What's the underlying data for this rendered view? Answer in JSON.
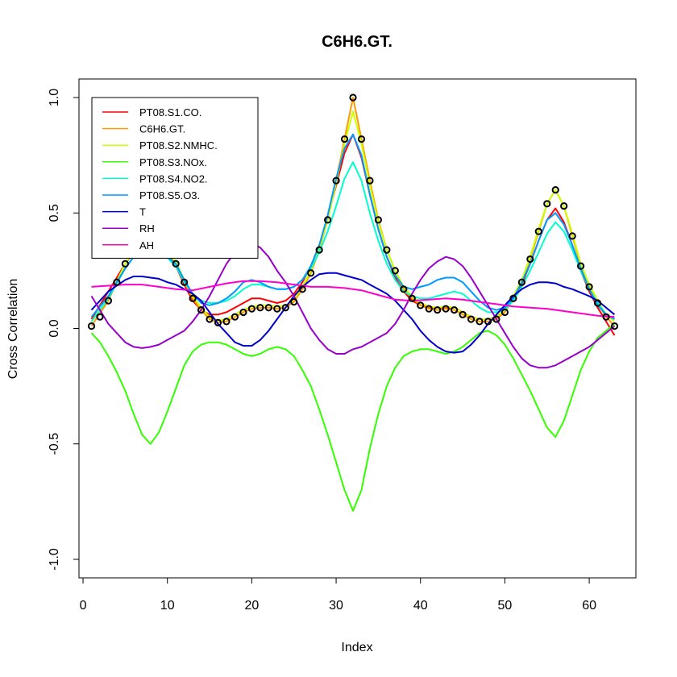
{
  "chart_data": {
    "type": "line",
    "title": "C6H6.GT.",
    "xlabel": "Index",
    "ylabel": "Cross Correlation",
    "xlim": [
      0,
      65
    ],
    "ylim": [
      -1.0,
      1.0
    ],
    "x_ticks": [
      0,
      10,
      20,
      30,
      40,
      50,
      60
    ],
    "x_tick_labels": [
      "0",
      "10",
      "20",
      "30",
      "40",
      "50",
      "60"
    ],
    "y_ticks": [
      -1.0,
      -0.5,
      0.0,
      0.5,
      1.0
    ],
    "y_tick_labels": [
      "-1.0",
      "-0.5",
      "0.0",
      "0.5",
      "1.0"
    ],
    "legend_position": "top-left",
    "points": {
      "name": "C6H6.GT.",
      "marker": "open-circle",
      "color": "#000000",
      "x": [
        1,
        2,
        3,
        4,
        5,
        6,
        7,
        8,
        9,
        10,
        11,
        12,
        13,
        14,
        15,
        16,
        17,
        18,
        19,
        20,
        21,
        22,
        23,
        24,
        25,
        26,
        27,
        28,
        29,
        30,
        31,
        32,
        33,
        34,
        35,
        36,
        37,
        38,
        39,
        40,
        41,
        42,
        43,
        44,
        45,
        46,
        47,
        48,
        49,
        50,
        51,
        52,
        53,
        54,
        55,
        56,
        57,
        58,
        59,
        60,
        61,
        62,
        63
      ],
      "y": [
        0.01,
        0.05,
        0.12,
        0.2,
        0.28,
        0.34,
        0.37,
        0.38,
        0.37,
        0.34,
        0.28,
        0.2,
        0.13,
        0.08,
        0.04,
        0.025,
        0.03,
        0.05,
        0.07,
        0.085,
        0.09,
        0.09,
        0.085,
        0.09,
        0.115,
        0.17,
        0.24,
        0.34,
        0.47,
        0.64,
        0.82,
        1.0,
        0.82,
        0.64,
        0.47,
        0.34,
        0.25,
        0.17,
        0.13,
        0.1,
        0.085,
        0.08,
        0.085,
        0.08,
        0.06,
        0.04,
        0.03,
        0.03,
        0.04,
        0.07,
        0.13,
        0.2,
        0.3,
        0.42,
        0.54,
        0.6,
        0.53,
        0.4,
        0.27,
        0.18,
        0.11,
        0.05,
        0.01
      ]
    },
    "series": [
      {
        "name": "PT08.S1.CO.",
        "color": "#FF0000",
        "x": [
          1,
          3,
          5,
          6,
          7,
          8,
          9,
          11,
          12,
          13,
          14,
          15,
          16,
          17,
          18,
          19,
          20,
          21,
          22,
          23,
          24,
          25,
          26,
          27,
          28,
          29,
          30,
          31,
          32,
          33,
          34,
          35,
          36,
          37,
          38,
          39,
          40,
          41,
          42,
          43,
          44,
          45,
          46,
          47,
          48,
          49,
          50,
          51,
          52,
          53,
          54,
          55,
          56,
          57,
          58,
          59,
          60,
          61,
          62,
          63
        ],
        "y": [
          0.04,
          0.16,
          0.28,
          0.33,
          0.35,
          0.36,
          0.35,
          0.27,
          0.19,
          0.12,
          0.08,
          0.06,
          0.06,
          0.07,
          0.09,
          0.11,
          0.13,
          0.13,
          0.12,
          0.11,
          0.12,
          0.15,
          0.2,
          0.27,
          0.36,
          0.48,
          0.62,
          0.76,
          0.84,
          0.74,
          0.58,
          0.43,
          0.31,
          0.22,
          0.16,
          0.12,
          0.1,
          0.09,
          0.09,
          0.09,
          0.09,
          0.07,
          0.05,
          0.04,
          0.04,
          0.05,
          0.08,
          0.13,
          0.19,
          0.28,
          0.38,
          0.47,
          0.52,
          0.46,
          0.36,
          0.25,
          0.16,
          0.09,
          0.03,
          -0.03
        ]
      },
      {
        "name": "C6H6.GT.",
        "color": "#FF9900",
        "x": [
          1,
          3,
          5,
          6,
          7,
          8,
          9,
          11,
          12,
          13,
          14,
          15,
          16,
          17,
          18,
          19,
          20,
          21,
          22,
          23,
          24,
          25,
          26,
          27,
          28,
          29,
          30,
          31,
          32,
          33,
          34,
          35,
          36,
          37,
          38,
          39,
          40,
          41,
          42,
          43,
          44,
          45,
          46,
          47,
          48,
          49,
          50,
          51,
          52,
          53,
          54,
          55,
          56,
          57,
          58,
          59,
          60,
          61,
          62,
          63
        ],
        "y": [
          0.01,
          0.12,
          0.28,
          0.34,
          0.37,
          0.38,
          0.37,
          0.28,
          0.2,
          0.13,
          0.08,
          0.04,
          0.025,
          0.03,
          0.05,
          0.07,
          0.085,
          0.09,
          0.09,
          0.085,
          0.09,
          0.115,
          0.17,
          0.24,
          0.34,
          0.47,
          0.64,
          0.82,
          1.0,
          0.82,
          0.64,
          0.47,
          0.34,
          0.25,
          0.17,
          0.13,
          0.1,
          0.085,
          0.08,
          0.085,
          0.08,
          0.06,
          0.04,
          0.03,
          0.03,
          0.04,
          0.07,
          0.13,
          0.2,
          0.3,
          0.42,
          0.54,
          0.6,
          0.53,
          0.4,
          0.27,
          0.18,
          0.11,
          0.05,
          0.01
        ]
      },
      {
        "name": "PT08.S2.NMHC.",
        "color": "#CCFF00",
        "x": [
          1,
          3,
          5,
          6,
          7,
          8,
          9,
          11,
          12,
          13,
          14,
          15,
          16,
          17,
          18,
          19,
          20,
          21,
          22,
          23,
          24,
          25,
          26,
          27,
          28,
          29,
          30,
          31,
          32,
          33,
          34,
          35,
          36,
          37,
          38,
          39,
          40,
          41,
          42,
          43,
          44,
          45,
          46,
          47,
          48,
          49,
          50,
          51,
          52,
          53,
          54,
          55,
          56,
          57,
          58,
          59,
          60,
          61,
          62,
          63
        ],
        "y": [
          0.03,
          0.13,
          0.28,
          0.34,
          0.37,
          0.38,
          0.37,
          0.29,
          0.21,
          0.14,
          0.09,
          0.05,
          0.035,
          0.04,
          0.06,
          0.08,
          0.095,
          0.1,
          0.1,
          0.095,
          0.1,
          0.125,
          0.18,
          0.25,
          0.35,
          0.47,
          0.63,
          0.8,
          0.94,
          0.8,
          0.62,
          0.46,
          0.34,
          0.25,
          0.18,
          0.14,
          0.11,
          0.095,
          0.09,
          0.095,
          0.09,
          0.07,
          0.05,
          0.04,
          0.04,
          0.05,
          0.08,
          0.14,
          0.21,
          0.31,
          0.43,
          0.54,
          0.6,
          0.53,
          0.41,
          0.28,
          0.19,
          0.12,
          0.06,
          0.03
        ]
      },
      {
        "name": "PT08.S3.NOx.",
        "color": "#33FF00",
        "x": [
          1,
          2,
          3,
          4,
          5,
          6,
          7,
          8,
          9,
          10,
          11,
          12,
          13,
          14,
          15,
          16,
          17,
          18,
          19,
          20,
          21,
          22,
          23,
          24,
          25,
          26,
          27,
          28,
          29,
          30,
          31,
          32,
          33,
          34,
          35,
          36,
          37,
          38,
          39,
          40,
          41,
          42,
          43,
          44,
          45,
          46,
          47,
          48,
          49,
          50,
          51,
          52,
          53,
          54,
          55,
          56,
          57,
          58,
          59,
          60,
          61,
          62,
          63
        ],
        "y": [
          -0.02,
          -0.06,
          -0.12,
          -0.19,
          -0.27,
          -0.37,
          -0.46,
          -0.5,
          -0.45,
          -0.36,
          -0.26,
          -0.16,
          -0.1,
          -0.07,
          -0.06,
          -0.06,
          -0.07,
          -0.09,
          -0.11,
          -0.12,
          -0.11,
          -0.09,
          -0.08,
          -0.09,
          -0.12,
          -0.18,
          -0.25,
          -0.35,
          -0.46,
          -0.58,
          -0.7,
          -0.79,
          -0.7,
          -0.52,
          -0.37,
          -0.25,
          -0.17,
          -0.12,
          -0.1,
          -0.09,
          -0.09,
          -0.1,
          -0.11,
          -0.1,
          -0.08,
          -0.05,
          -0.02,
          -0.01,
          -0.03,
          -0.07,
          -0.13,
          -0.2,
          -0.27,
          -0.35,
          -0.43,
          -0.47,
          -0.4,
          -0.29,
          -0.18,
          -0.1,
          -0.04,
          -0.01,
          0.02
        ]
      },
      {
        "name": "PT08.S4.NO2.",
        "color": "#00FFCC",
        "x": [
          1,
          3,
          5,
          6,
          7,
          8,
          9,
          11,
          12,
          13,
          14,
          15,
          16,
          17,
          18,
          19,
          20,
          21,
          22,
          23,
          24,
          25,
          26,
          27,
          28,
          29,
          30,
          31,
          32,
          33,
          34,
          35,
          36,
          37,
          38,
          39,
          40,
          41,
          42,
          43,
          44,
          45,
          46,
          47,
          48,
          49,
          50,
          51,
          52,
          53,
          54,
          55,
          56,
          57,
          58,
          59,
          60,
          61,
          62,
          63
        ],
        "y": [
          0.03,
          0.13,
          0.26,
          0.31,
          0.34,
          0.35,
          0.34,
          0.27,
          0.2,
          0.15,
          0.12,
          0.11,
          0.11,
          0.12,
          0.14,
          0.17,
          0.19,
          0.19,
          0.18,
          0.17,
          0.17,
          0.18,
          0.21,
          0.26,
          0.33,
          0.42,
          0.53,
          0.65,
          0.72,
          0.64,
          0.5,
          0.38,
          0.28,
          0.21,
          0.16,
          0.14,
          0.13,
          0.13,
          0.14,
          0.15,
          0.16,
          0.15,
          0.12,
          0.09,
          0.07,
          0.07,
          0.08,
          0.12,
          0.18,
          0.25,
          0.33,
          0.41,
          0.46,
          0.42,
          0.34,
          0.25,
          0.17,
          0.11,
          0.06,
          0.04
        ]
      },
      {
        "name": "PT08.S5.O3.",
        "color": "#0099FF",
        "x": [
          1,
          3,
          5,
          6,
          7,
          8,
          9,
          11,
          12,
          13,
          14,
          15,
          16,
          17,
          18,
          19,
          20,
          21,
          22,
          23,
          24,
          25,
          26,
          27,
          28,
          29,
          30,
          31,
          32,
          33,
          34,
          35,
          36,
          37,
          38,
          39,
          40,
          41,
          42,
          43,
          44,
          45,
          46,
          47,
          48,
          49,
          50,
          51,
          52,
          53,
          54,
          55,
          56,
          57,
          58,
          59,
          60,
          61,
          62,
          63
        ],
        "y": [
          0.05,
          0.14,
          0.26,
          0.31,
          0.34,
          0.35,
          0.34,
          0.28,
          0.21,
          0.15,
          0.11,
          0.1,
          0.11,
          0.13,
          0.16,
          0.2,
          0.21,
          0.2,
          0.18,
          0.17,
          0.17,
          0.18,
          0.21,
          0.27,
          0.36,
          0.49,
          0.65,
          0.78,
          0.84,
          0.75,
          0.58,
          0.43,
          0.31,
          0.23,
          0.18,
          0.17,
          0.18,
          0.19,
          0.21,
          0.22,
          0.22,
          0.2,
          0.16,
          0.12,
          0.09,
          0.08,
          0.09,
          0.13,
          0.2,
          0.28,
          0.38,
          0.47,
          0.5,
          0.45,
          0.36,
          0.26,
          0.17,
          0.1,
          0.06,
          0.04
        ]
      },
      {
        "name": "T",
        "color": "#0000CC",
        "x": [
          1,
          3,
          5,
          6,
          7,
          8,
          9,
          10,
          11,
          12,
          13,
          14,
          15,
          16,
          17,
          18,
          19,
          20,
          21,
          22,
          23,
          24,
          25,
          26,
          27,
          28,
          29,
          30,
          31,
          32,
          33,
          34,
          35,
          36,
          37,
          38,
          39,
          40,
          41,
          42,
          43,
          44,
          45,
          46,
          47,
          48,
          49,
          50,
          51,
          52,
          53,
          54,
          55,
          56,
          57,
          58,
          59,
          60,
          61,
          62,
          63
        ],
        "y": [
          0.08,
          0.16,
          0.21,
          0.225,
          0.225,
          0.22,
          0.215,
          0.2,
          0.19,
          0.17,
          0.15,
          0.12,
          0.07,
          0.02,
          -0.02,
          -0.06,
          -0.075,
          -0.075,
          -0.05,
          -0.01,
          0.04,
          0.09,
          0.14,
          0.18,
          0.21,
          0.235,
          0.24,
          0.24,
          0.23,
          0.22,
          0.21,
          0.19,
          0.17,
          0.15,
          0.12,
          0.08,
          0.04,
          -0.01,
          -0.05,
          -0.08,
          -0.1,
          -0.105,
          -0.1,
          -0.07,
          -0.03,
          0.02,
          0.06,
          0.1,
          0.14,
          0.17,
          0.19,
          0.2,
          0.2,
          0.195,
          0.18,
          0.17,
          0.155,
          0.14,
          0.12,
          0.09,
          0.06
        ]
      },
      {
        "name": "RH",
        "color": "#9900CC",
        "x": [
          1,
          3,
          5,
          6,
          7,
          8,
          9,
          10,
          11,
          12,
          13,
          14,
          15,
          16,
          17,
          18,
          19,
          20,
          21,
          22,
          23,
          24,
          25,
          26,
          27,
          28,
          29,
          30,
          31,
          32,
          33,
          34,
          35,
          36,
          37,
          38,
          39,
          40,
          41,
          42,
          43,
          44,
          45,
          46,
          47,
          48,
          49,
          50,
          51,
          52,
          53,
          54,
          55,
          56,
          57,
          58,
          59,
          60,
          61,
          62,
          63
        ],
        "y": [
          0.14,
          0.02,
          -0.06,
          -0.08,
          -0.085,
          -0.08,
          -0.07,
          -0.05,
          -0.03,
          -0.01,
          0.03,
          0.08,
          0.14,
          0.21,
          0.28,
          0.33,
          0.36,
          0.37,
          0.35,
          0.31,
          0.25,
          0.2,
          0.14,
          0.07,
          0.0,
          -0.05,
          -0.09,
          -0.11,
          -0.11,
          -0.09,
          -0.08,
          -0.06,
          -0.04,
          -0.02,
          0.02,
          0.08,
          0.15,
          0.21,
          0.26,
          0.29,
          0.31,
          0.3,
          0.27,
          0.22,
          0.16,
          0.1,
          0.04,
          -0.02,
          -0.08,
          -0.13,
          -0.16,
          -0.17,
          -0.17,
          -0.16,
          -0.14,
          -0.12,
          -0.1,
          -0.08,
          -0.05,
          -0.02,
          0.01
        ]
      },
      {
        "name": "AH",
        "color": "#FF00CC",
        "x": [
          1,
          3,
          5,
          7,
          9,
          11,
          13,
          15,
          17,
          19,
          21,
          23,
          25,
          27,
          29,
          31,
          33,
          35,
          37,
          39,
          41,
          43,
          45,
          47,
          49,
          51,
          53,
          55,
          57,
          59,
          61,
          63
        ],
        "y": [
          0.18,
          0.185,
          0.19,
          0.19,
          0.18,
          0.17,
          0.165,
          0.18,
          0.195,
          0.205,
          0.205,
          0.2,
          0.19,
          0.18,
          0.18,
          0.175,
          0.165,
          0.145,
          0.125,
          0.12,
          0.125,
          0.13,
          0.125,
          0.115,
          0.105,
          0.095,
          0.09,
          0.085,
          0.075,
          0.065,
          0.055,
          0.05
        ]
      }
    ]
  }
}
